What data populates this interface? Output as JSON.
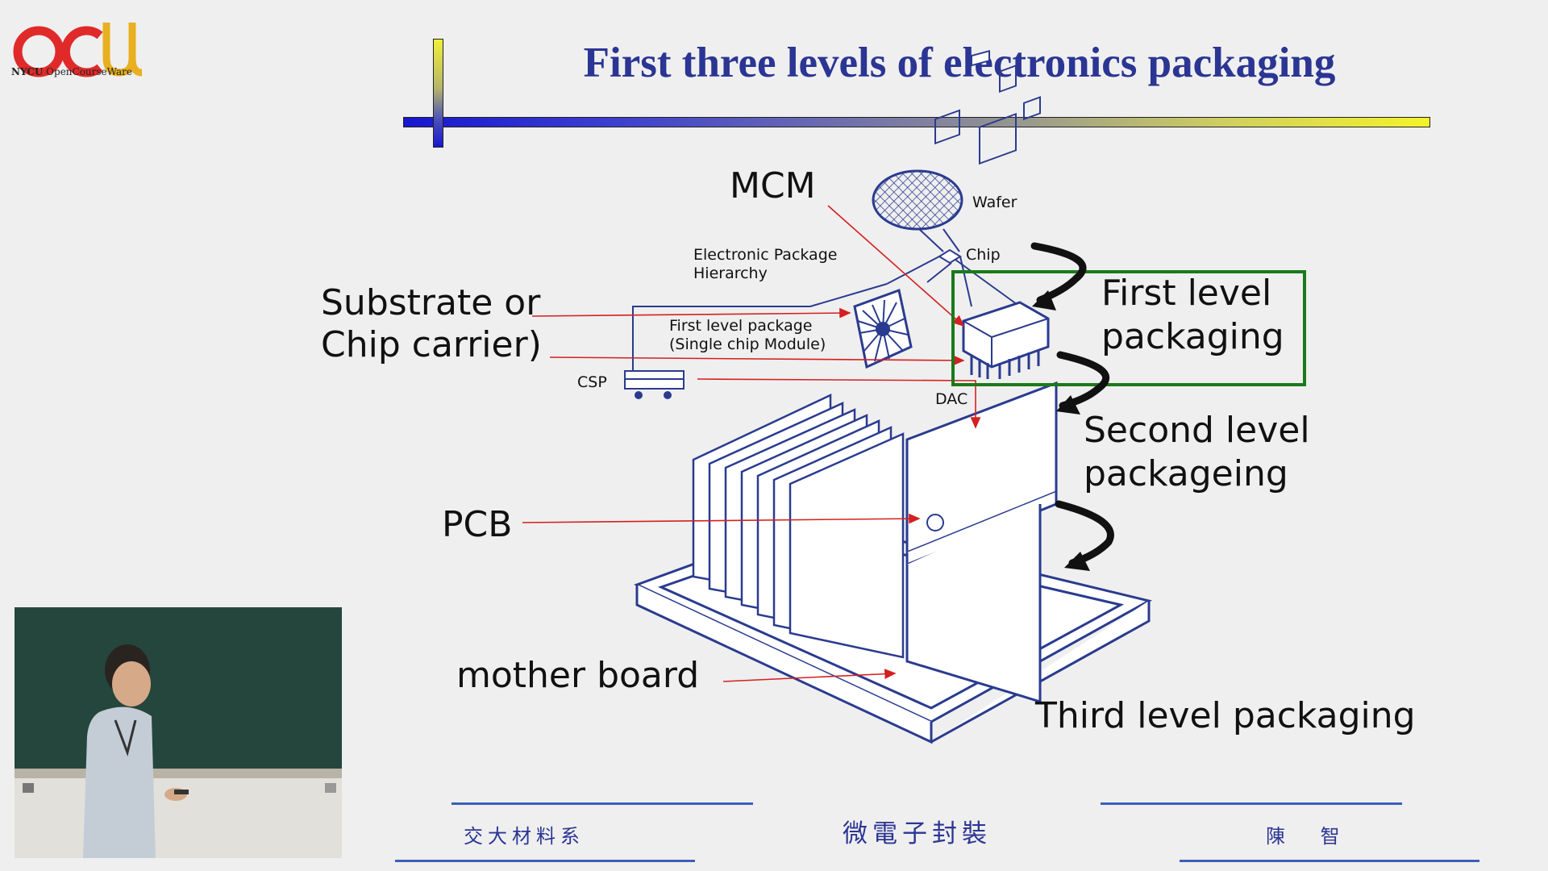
{
  "logo": {
    "acronym": "OCW",
    "institution": "NYCU",
    "subtitle": "OpenCourseWare"
  },
  "slide": {
    "title": "First three levels of electronics packaging",
    "labels": {
      "mcm": "MCM",
      "wafer": "Wafer",
      "chip": "Chip",
      "hierarchy": [
        "Electronic Package",
        "Hierarchy"
      ],
      "substrate": [
        "Substrate or",
        "Chip carrier)"
      ],
      "first_level_package": [
        "First level package",
        "(Single chip Module)"
      ],
      "csp": "CSP",
      "dac": "DAC",
      "pcb": "PCB",
      "mother_board": "mother board",
      "first_level": [
        "First level",
        "packaging"
      ],
      "second_level": [
        "Second level",
        "packageing"
      ],
      "third_level": "Third level packaging"
    }
  },
  "footer": {
    "left": "交大材料系",
    "center": "微電子封裝",
    "right": "陳 智"
  },
  "colors": {
    "title": "#2b3593",
    "line_art": "#2a3b8f",
    "arrow_red": "#d42020",
    "highlight_box": "#1a7a1a",
    "logo_red": "#e02a2a",
    "logo_gold": "#e8b020"
  }
}
